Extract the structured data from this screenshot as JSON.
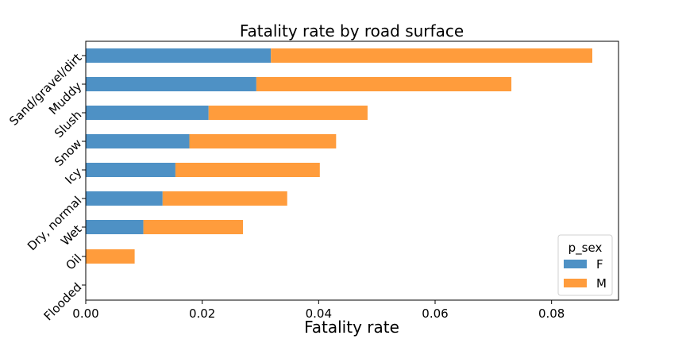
{
  "chart_data": {
    "type": "bar",
    "orientation": "horizontal",
    "stacked": true,
    "title": "Fatality rate by road surface",
    "xlabel": "Fatality rate",
    "ylabel": "",
    "xlim": [
      0,
      0.0915
    ],
    "xticks": [
      0.0,
      0.02,
      0.04,
      0.06,
      0.08
    ],
    "xtick_labels": [
      "0.00",
      "0.02",
      "0.04",
      "0.06",
      "0.08"
    ],
    "categories": [
      "Sand/gravel/dirt",
      "Muddy",
      "Slush",
      "Snow",
      "Icy",
      "Dry, normal",
      "Wet",
      "Oil",
      "Flooded"
    ],
    "series": [
      {
        "name": "F",
        "color": "#4e91c5",
        "values": [
          0.0318,
          0.0293,
          0.0211,
          0.0178,
          0.0154,
          0.0132,
          0.0099,
          0.0,
          0.0
        ]
      },
      {
        "name": "M",
        "color": "#ff9c3c",
        "values": [
          0.0552,
          0.0438,
          0.0273,
          0.0252,
          0.0248,
          0.0214,
          0.0171,
          0.0084,
          0.0
        ]
      }
    ],
    "legend": {
      "title": "p_sex",
      "position": "lower-right"
    },
    "grid": false
  }
}
